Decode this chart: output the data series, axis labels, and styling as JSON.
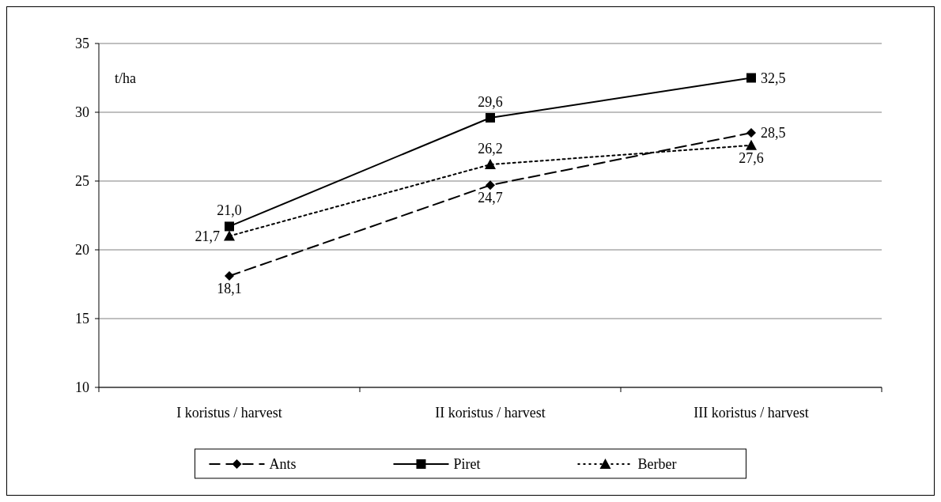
{
  "chart_data": {
    "type": "line",
    "ylabel": "t/ha",
    "categories": [
      "I koristus / harvest",
      "II koristus / harvest",
      "III koristus / harvest"
    ],
    "ylim": [
      10,
      35
    ],
    "yticks": [
      10,
      15,
      20,
      25,
      30,
      35
    ],
    "grid": "y",
    "legend": "bottom",
    "series": [
      {
        "name": "Ants",
        "color": "#000000",
        "marker": "diamond",
        "line_style": "dashed",
        "values": [
          18.1,
          24.7,
          28.5
        ],
        "value_labels": [
          "18,1",
          "24,7",
          "28,5"
        ]
      },
      {
        "name": "Piret",
        "color": "#000000",
        "marker": "square",
        "line_style": "solid",
        "values": [
          21.7,
          29.6,
          32.5
        ],
        "value_labels": [
          "21,7",
          "29,6",
          "32,5"
        ]
      },
      {
        "name": "Berber",
        "color": "#000000",
        "marker": "triangle",
        "line_style": "dotted",
        "values": [
          21.0,
          26.2,
          27.6
        ],
        "value_labels": [
          "21,0",
          "26,2",
          "27,6"
        ]
      }
    ]
  }
}
